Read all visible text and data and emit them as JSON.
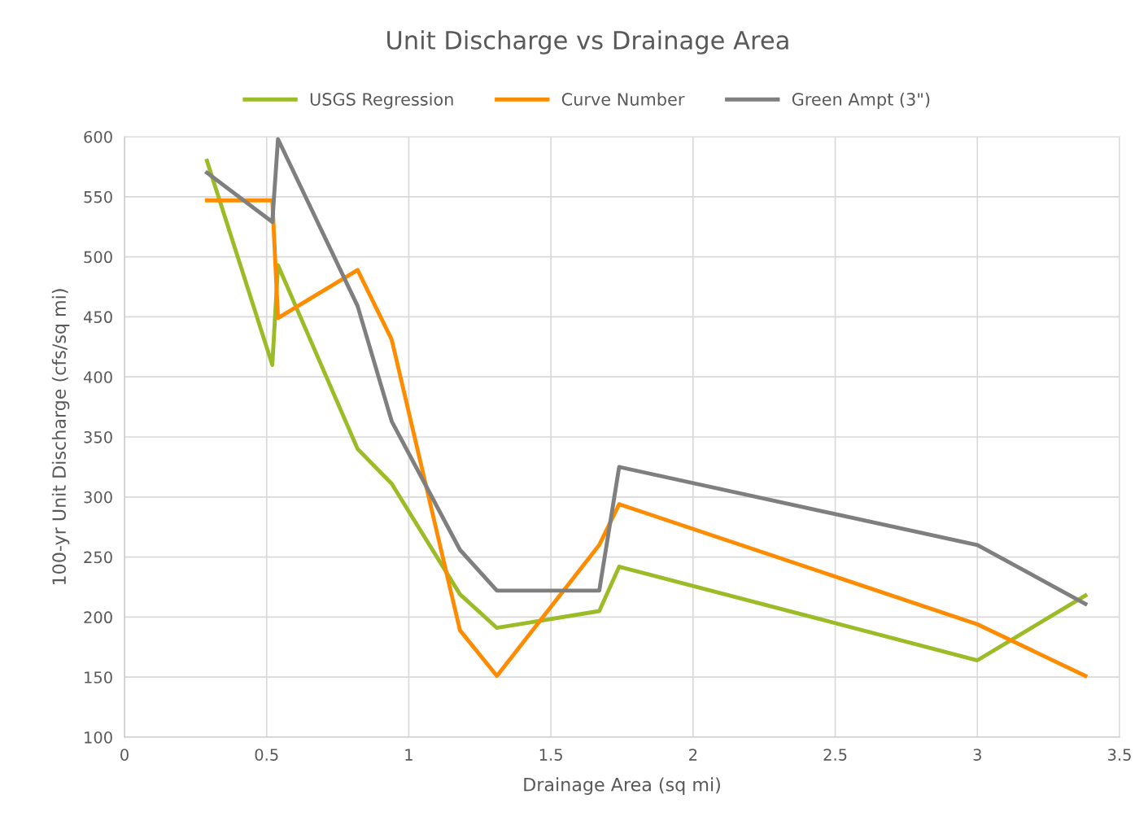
{
  "chart_data": {
    "type": "line",
    "title": "Unit Discharge vs Drainage Area",
    "xlabel": "Drainage Area (sq mi)",
    "ylabel": "100-yr Unit Discharge (cfs/sq mi)",
    "x": [
      0.29,
      0.52,
      0.54,
      0.82,
      0.94,
      1.18,
      1.31,
      1.67,
      1.74,
      3.0,
      3.38
    ],
    "series": [
      {
        "name": "USGS Regression",
        "color": "#9bbb27",
        "values": [
          580,
          410,
          493,
          340,
          311,
          219,
          191,
          205,
          242,
          164,
          218
        ]
      },
      {
        "name": "Curve Number",
        "color": "#ff8c00",
        "values": [
          547,
          547,
          449,
          489,
          431,
          189,
          151,
          260,
          294,
          194,
          151
        ]
      },
      {
        "name": "Green Ampt (3\")",
        "color": "#7f7f7f",
        "values": [
          570,
          529,
          598,
          459,
          363,
          256,
          222,
          222,
          325,
          260,
          211
        ]
      }
    ],
    "xlim": [
      0,
      3.5
    ],
    "xticks": [
      0,
      0.5,
      1,
      1.5,
      2,
      2.5,
      3,
      3.5
    ],
    "ylim": [
      100,
      600
    ],
    "yticks": [
      100,
      150,
      200,
      250,
      300,
      350,
      400,
      450,
      500,
      550,
      600
    ],
    "grid": true,
    "legend": "top",
    "marker": "none",
    "line_style": "solid"
  }
}
